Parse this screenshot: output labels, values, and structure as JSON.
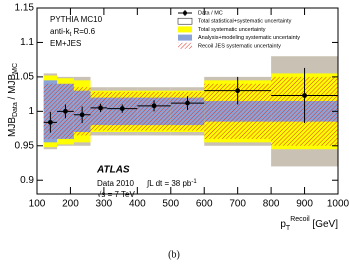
{
  "chart_data": {
    "type": "errorbar",
    "x_label": {
      "main": "p",
      "sub": "T",
      "sup": "Recoil",
      "unit": " [GeV]"
    },
    "y_label": {
      "main": "MJB",
      "sub1": "Data",
      "mid": " / MJB",
      "sub2": "MC"
    },
    "annotations": {
      "generator": "PYTHIA MC10",
      "jet_a": "anti-k",
      "jet_sub": "t",
      "jet_b": " R=0.6",
      "calib": "EM+JES",
      "experiment": "ATLAS",
      "data": "Data 2010",
      "lumi": "∫L dt = 38 pb",
      "lumi_sup": "-1",
      "energy": "√s = 7 TeV",
      "panel": "(b)"
    },
    "xlim": [
      100,
      1000
    ],
    "xticks": [
      100,
      200,
      300,
      400,
      500,
      600,
      700,
      800,
      900,
      1000
    ],
    "ylim": [
      0.88,
      1.15
    ],
    "yticks": [
      0.9,
      0.95,
      1,
      1.05,
      1.1,
      1.15
    ],
    "reference": 1,
    "bins": [
      120,
      160,
      210,
      260,
      310,
      400,
      500,
      600,
      800,
      1000
    ],
    "series": {
      "name": "Data / MC",
      "color": "#000000",
      "x": [
        140,
        185,
        235,
        290,
        355,
        450,
        550,
        700,
        900
      ],
      "values": [
        0.984,
        1.0,
        0.995,
        1.005,
        1.004,
        1.008,
        1.012,
        1.03,
        1.023
      ],
      "errors": [
        0.015,
        0.01,
        0.012,
        0.006,
        0.006,
        0.008,
        0.01,
        0.02,
        0.04
      ]
    },
    "bands": [
      {
        "name": "Total statistical+systematic uncertainty",
        "color": "#c9c2b4",
        "values": [
          0.055,
          0.05,
          0.05,
          0.035,
          0.035,
          0.035,
          0.035,
          0.05,
          0.08
        ]
      },
      {
        "name": "Total systematic uncertainty",
        "color": "#ffff00",
        "values": [
          0.052,
          0.048,
          0.045,
          0.03,
          0.03,
          0.03,
          0.03,
          0.045,
          0.055
        ]
      },
      {
        "name": "Analysis+modeling systematic uncertainty",
        "color": "#8aa3d8",
        "values": [
          0.045,
          0.04,
          0.03,
          0.02,
          0.02,
          0.02,
          0.02,
          0.015,
          0.015
        ]
      },
      {
        "name": "Recoil JES systematic uncertainty",
        "color": "#e03020",
        "hatched": true,
        "values": [
          0.04,
          0.04,
          0.035,
          0.028,
          0.028,
          0.028,
          0.028,
          0.04,
          0.05
        ]
      }
    ]
  }
}
